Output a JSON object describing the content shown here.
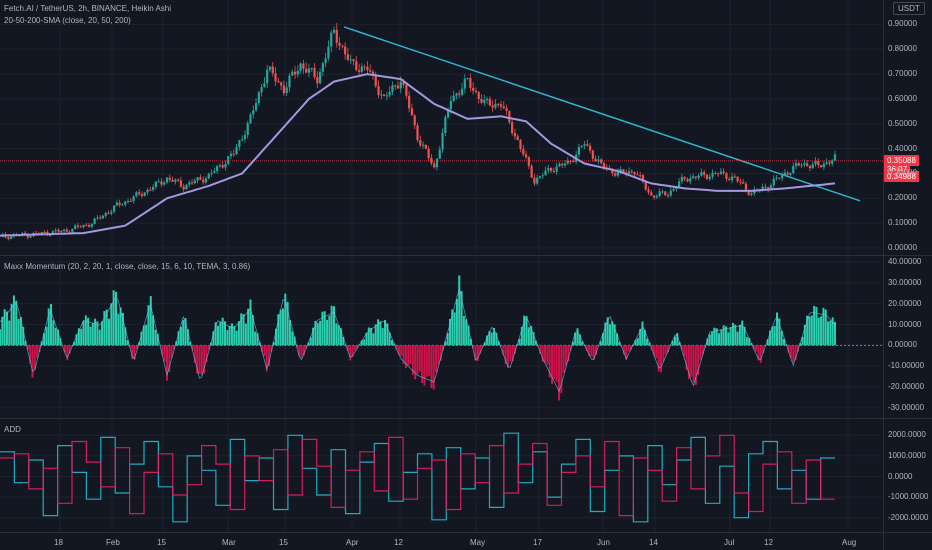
{
  "header": {
    "title": "Fetch.AI / TetherUS, 2h, BINANCE, Heikin Ashi",
    "overlay_label": "20-50-200-SMA (close, 20, 50, 200)",
    "quote_currency": "USDT"
  },
  "colors": {
    "background": "#131722",
    "grid": "#1e222d",
    "up": "#26a69a",
    "down": "#ef5350",
    "sma": "#a397e0",
    "trendline": "#2fb4cf",
    "price_line": "#f23645",
    "momentum_pos": "#2fe3c0",
    "momentum_neg": "#e0144e",
    "add_a": "#26c6da",
    "add_b": "#e91e63"
  },
  "price_tags": {
    "high": "0.35088",
    "mid": "36:07",
    "low": "0.34988"
  },
  "time_axis": [
    "18",
    "Feb",
    "15",
    "Mar",
    "15",
    "Apr",
    "12",
    "May",
    "17",
    "Jun",
    "14",
    "Jul",
    "12",
    "Aug"
  ],
  "chart_data": [
    {
      "type": "candlestick",
      "title": "Fetch.AI / TetherUS, 2h, BINANCE, Heikin Ashi",
      "ylim": [
        0,
        0.95
      ],
      "y_ticks": [
        "0.00000",
        "0.10000",
        "0.20000",
        "0.30000",
        "0.40000",
        "0.50000",
        "0.60000",
        "0.70000",
        "0.80000",
        "0.90000"
      ],
      "price_path": [
        [
          0.0,
          0.045
        ],
        [
          0.04,
          0.055
        ],
        [
          0.08,
          0.07
        ],
        [
          0.11,
          0.1
        ],
        [
          0.14,
          0.17
        ],
        [
          0.17,
          0.22
        ],
        [
          0.2,
          0.28
        ],
        [
          0.22,
          0.25
        ],
        [
          0.25,
          0.29
        ],
        [
          0.28,
          0.38
        ],
        [
          0.3,
          0.52
        ],
        [
          0.32,
          0.72
        ],
        [
          0.34,
          0.64
        ],
        [
          0.36,
          0.74
        ],
        [
          0.38,
          0.68
        ],
        [
          0.4,
          0.87
        ],
        [
          0.42,
          0.74
        ],
        [
          0.44,
          0.72
        ],
        [
          0.46,
          0.6
        ],
        [
          0.48,
          0.68
        ],
        [
          0.5,
          0.45
        ],
        [
          0.52,
          0.32
        ],
        [
          0.54,
          0.6
        ],
        [
          0.56,
          0.67
        ],
        [
          0.58,
          0.58
        ],
        [
          0.6,
          0.58
        ],
        [
          0.62,
          0.43
        ],
        [
          0.64,
          0.27
        ],
        [
          0.66,
          0.32
        ],
        [
          0.68,
          0.34
        ],
        [
          0.7,
          0.42
        ],
        [
          0.72,
          0.33
        ],
        [
          0.74,
          0.3
        ],
        [
          0.76,
          0.31
        ],
        [
          0.78,
          0.21
        ],
        [
          0.8,
          0.22
        ],
        [
          0.82,
          0.28
        ],
        [
          0.84,
          0.29
        ],
        [
          0.86,
          0.3
        ],
        [
          0.88,
          0.28
        ],
        [
          0.9,
          0.22
        ],
        [
          0.92,
          0.25
        ],
        [
          0.94,
          0.3
        ],
        [
          0.96,
          0.34
        ],
        [
          0.98,
          0.33
        ],
        [
          1.0,
          0.36
        ]
      ],
      "sma_path": [
        [
          0.0,
          0.05
        ],
        [
          0.1,
          0.06
        ],
        [
          0.15,
          0.09
        ],
        [
          0.2,
          0.2
        ],
        [
          0.25,
          0.25
        ],
        [
          0.29,
          0.3
        ],
        [
          0.33,
          0.45
        ],
        [
          0.37,
          0.6
        ],
        [
          0.4,
          0.67
        ],
        [
          0.44,
          0.7
        ],
        [
          0.48,
          0.68
        ],
        [
          0.52,
          0.58
        ],
        [
          0.56,
          0.52
        ],
        [
          0.6,
          0.53
        ],
        [
          0.63,
          0.51
        ],
        [
          0.66,
          0.42
        ],
        [
          0.7,
          0.34
        ],
        [
          0.74,
          0.31
        ],
        [
          0.78,
          0.26
        ],
        [
          0.82,
          0.24
        ],
        [
          0.86,
          0.23
        ],
        [
          0.9,
          0.23
        ],
        [
          0.94,
          0.24
        ],
        [
          1.0,
          0.26
        ]
      ],
      "trendline": {
        "start": [
          0.412,
          0.89
        ],
        "end": [
          1.03,
          0.19
        ]
      },
      "last_price": 0.35088
    },
    {
      "type": "histogram",
      "title": "Maxx Momentum (20, 2, 20, 1, close, close, 15, 6, 10, TEMA, 3, 0.86)",
      "ylim": [
        -32,
        40
      ],
      "y_ticks": [
        "-30.00000",
        "-20.00000",
        "-10.00000",
        "0.00000",
        "10.00000",
        "20.00000",
        "30.00000",
        "40.00000"
      ],
      "peaks": [
        [
          0.0,
          14
        ],
        [
          0.02,
          26
        ],
        [
          0.04,
          -18
        ],
        [
          0.06,
          22
        ],
        [
          0.08,
          -8
        ],
        [
          0.1,
          15
        ],
        [
          0.12,
          12
        ],
        [
          0.14,
          30
        ],
        [
          0.16,
          -10
        ],
        [
          0.18,
          25
        ],
        [
          0.2,
          -18
        ],
        [
          0.22,
          18
        ],
        [
          0.24,
          -22
        ],
        [
          0.26,
          15
        ],
        [
          0.28,
          10
        ],
        [
          0.3,
          22
        ],
        [
          0.32,
          -15
        ],
        [
          0.34,
          30
        ],
        [
          0.36,
          -10
        ],
        [
          0.38,
          15
        ],
        [
          0.4,
          20
        ],
        [
          0.42,
          -8
        ],
        [
          0.44,
          8
        ],
        [
          0.46,
          15
        ],
        [
          0.48,
          -8
        ],
        [
          0.5,
          -18
        ],
        [
          0.52,
          -22
        ],
        [
          0.54,
          15
        ],
        [
          0.55,
          34
        ],
        [
          0.57,
          -10
        ],
        [
          0.59,
          12
        ],
        [
          0.61,
          -15
        ],
        [
          0.63,
          18
        ],
        [
          0.65,
          -8
        ],
        [
          0.67,
          -28
        ],
        [
          0.69,
          10
        ],
        [
          0.71,
          -10
        ],
        [
          0.73,
          18
        ],
        [
          0.75,
          -8
        ],
        [
          0.77,
          12
        ],
        [
          0.79,
          -15
        ],
        [
          0.81,
          8
        ],
        [
          0.83,
          -25
        ],
        [
          0.85,
          8
        ],
        [
          0.87,
          10
        ],
        [
          0.89,
          12
        ],
        [
          0.91,
          -10
        ],
        [
          0.93,
          18
        ],
        [
          0.95,
          -12
        ],
        [
          0.97,
          20
        ],
        [
          0.99,
          18
        ],
        [
          1.0,
          12
        ]
      ]
    },
    {
      "type": "step-line",
      "title": "ADD",
      "ylim": [
        -2500,
        2500
      ],
      "y_ticks": [
        "-2000.0000",
        "-1000.0000",
        "0.0000",
        "1000.0000",
        "2000.0000"
      ],
      "series": [
        {
          "color_key": "add_a",
          "values": [
            1200,
            -300,
            800,
            -1900,
            1500,
            200,
            -1100,
            1900,
            -800,
            600,
            1700,
            -500,
            -2200,
            1000,
            300,
            -1400,
            1800,
            -200,
            900,
            -1600,
            2000,
            400,
            -900,
            1300,
            -1800,
            700,
            1600,
            -1200,
            200,
            1100,
            -2100,
            1400,
            -600,
            900,
            -1500,
            2100,
            -300,
            1200,
            -1000,
            600,
            1800,
            -1700,
            300,
            1000,
            -2200,
            1500,
            -400,
            800,
            1900,
            -1300,
            500,
            -2000,
            1100,
            1700,
            -600,
            300,
            -1100,
            900
          ]
        },
        {
          "color_key": "add_b",
          "values": [
            900,
            1100,
            -600,
            400,
            -1300,
            1700,
            700,
            -500,
            1400,
            -1800,
            200,
            1100,
            -900,
            -400,
            1500,
            600,
            -1600,
            1000,
            -200,
            1300,
            -900,
            1800,
            500,
            -1500,
            300,
            1200,
            -700,
            1900,
            -1100,
            400,
            800,
            -1600,
            1100,
            -300,
            1500,
            -800,
            600,
            1600,
            -1400,
            200,
            1000,
            -500,
            1700,
            -1900,
            900,
            300,
            -1200,
            1400,
            -600,
            1000,
            2000,
            -800,
            -1700,
            600,
            1200,
            -1300,
            800,
            -1100
          ]
        }
      ]
    }
  ]
}
